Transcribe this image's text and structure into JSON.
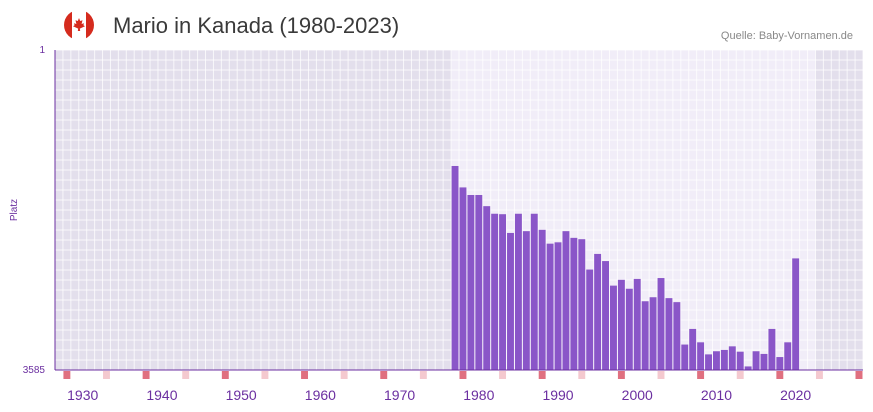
{
  "header": {
    "title": "Mario in Kanada (1980-2023)",
    "source": "Quelle: Baby-Vornamen.de",
    "flag_icon": "canada-flag-icon"
  },
  "colors": {
    "bar": "#8a56c8",
    "axis": "#6b2fa0",
    "tick_marker": "#e07080",
    "tick_marker_light": "#f4c9cf",
    "bg_dark": "#e3dfec",
    "bg_light": "#f1edf8",
    "flag_red": "#d52b1e"
  },
  "chart_data": {
    "type": "bar",
    "title": "Mario in Kanada (1980-2023)",
    "xlabel": "",
    "ylabel": "Platz",
    "y_inverted": true,
    "ylim": [
      3585,
      1
    ],
    "y_tick_labels": [
      "1",
      "3585"
    ],
    "xlim": [
      1927,
      2028
    ],
    "highlight_range": [
      1977,
      2022
    ],
    "x_ticks": [
      1930,
      1940,
      1950,
      1960,
      1970,
      1980,
      1990,
      2000,
      2010,
      2020
    ],
    "x_tick_labels": [
      "1930",
      "1940",
      "1950",
      "1960",
      "1970",
      "1980",
      "1990",
      "2000",
      "2010",
      "2020"
    ],
    "grid": true,
    "series": [
      {
        "name": "Platz",
        "x": [
          1977,
          1978,
          1979,
          1980,
          1981,
          1982,
          1983,
          1984,
          1985,
          1986,
          1987,
          1988,
          1989,
          1990,
          1991,
          1992,
          1993,
          1994,
          1995,
          1996,
          1997,
          1998,
          1999,
          2000,
          2001,
          2002,
          2003,
          2004,
          2005,
          2006,
          2007,
          2008,
          2009,
          2010,
          2011,
          2012,
          2013,
          2014,
          2015,
          2016,
          2017,
          2018,
          2019,
          2020,
          2021
        ],
        "values": [
          1300,
          1540,
          1625,
          1625,
          1750,
          1835,
          1840,
          2050,
          1835,
          2030,
          1835,
          2015,
          2170,
          2155,
          2030,
          2105,
          2120,
          2460,
          2285,
          2365,
          2640,
          2575,
          2675,
          2565,
          2815,
          2770,
          2555,
          2780,
          2825,
          3300,
          3125,
          3275,
          3410,
          3375,
          3360,
          3320,
          3380,
          3545,
          3375,
          3405,
          3125,
          3440,
          3275,
          2335,
          0
        ]
      }
    ]
  }
}
